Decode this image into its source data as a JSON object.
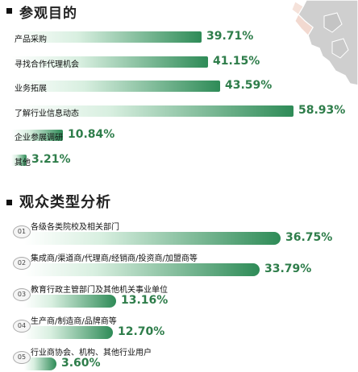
{
  "section1": {
    "title": "参观目的"
  },
  "section2": {
    "title": "观众类型分析"
  },
  "colors": {
    "accent": "#2e7d4a",
    "bar_start": "#ffffff",
    "bar_end": "#2e8b57"
  },
  "icons": {
    "bullet": "square-bullet-icon",
    "map": "map-fragment-icon"
  },
  "chart_data": [
    {
      "type": "bar",
      "title": "参观目的",
      "categories": [
        "产品采购",
        "寻找合作代理机会",
        "业务拓展",
        "了解行业信息动态",
        "企业参展调研",
        "其他"
      ],
      "values": [
        39.71,
        41.15,
        43.59,
        58.93,
        10.84,
        3.21
      ],
      "value_labels": [
        "39.71%",
        "41.15%",
        "43.59%",
        "58.93%",
        "10.84%",
        "3.21%"
      ],
      "unit": "%",
      "ylim": [
        0,
        60
      ]
    },
    {
      "type": "bar",
      "title": "观众类型分析",
      "numbers": [
        "01",
        "02",
        "03",
        "04",
        "05"
      ],
      "categories": [
        "各级各类院校及相关部门",
        "集成商/渠道商/代理商/经销商/投资商/加盟商等",
        "教育行政主管部门及其他机关事业单位",
        "生产商/制造商/品牌商等",
        "行业商协会、机构、其他行业用户"
      ],
      "values": [
        36.75,
        33.79,
        13.16,
        12.7,
        3.6
      ],
      "value_labels": [
        "36.75%",
        "33.79%",
        "13.16%",
        "12.70%",
        "3.60%"
      ],
      "unit": "%",
      "ylim": [
        0,
        40
      ]
    }
  ]
}
